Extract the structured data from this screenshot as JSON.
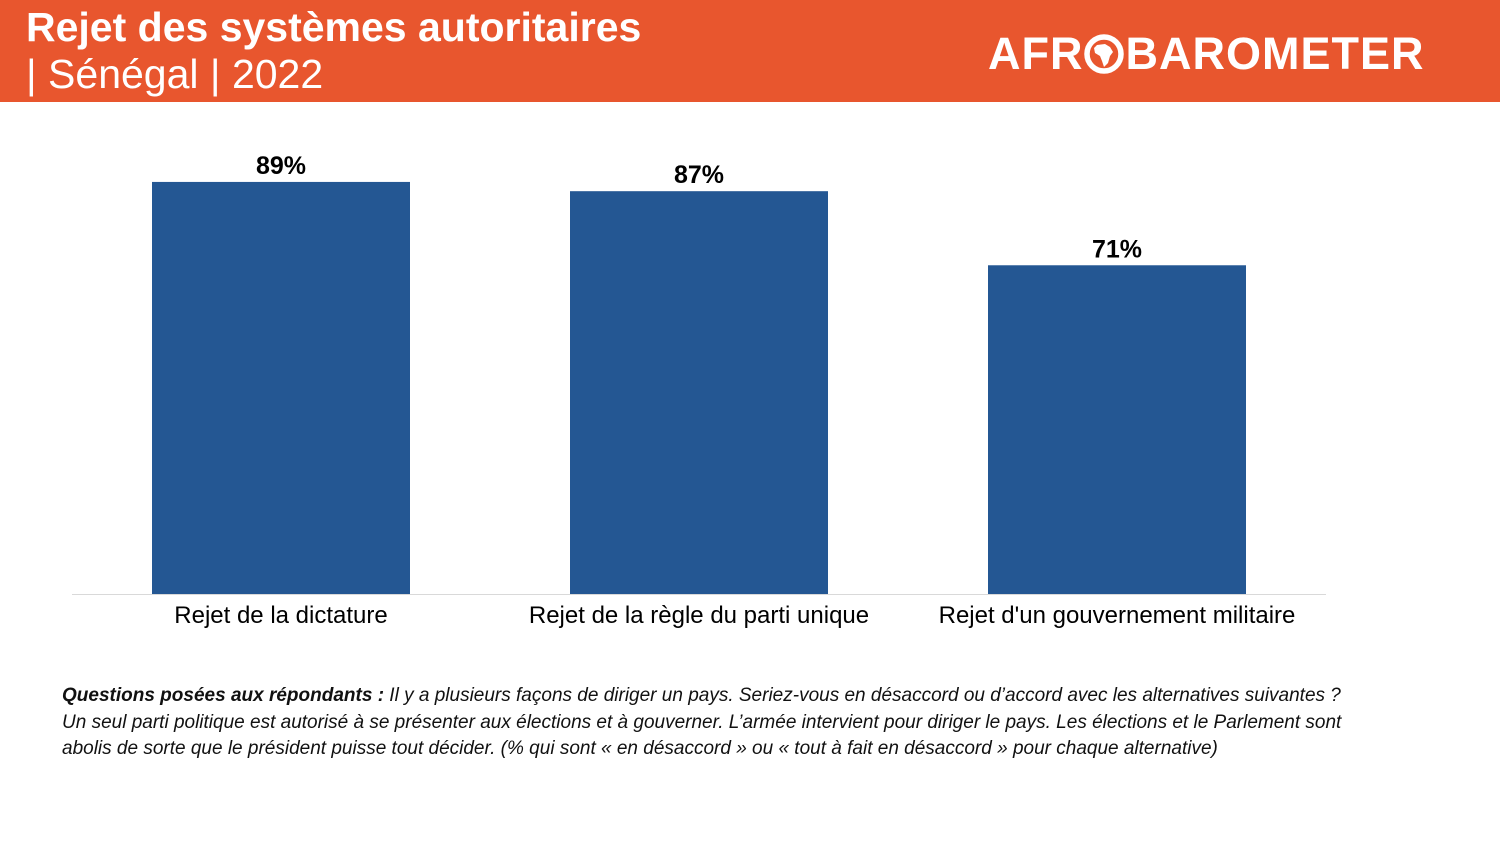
{
  "header": {
    "title": "Rejet des systèmes autoritaires",
    "subtitle": "| Sénégal | 2022",
    "logo_left": "AFR",
    "logo_right": "BAROMETER",
    "logo_text": "AFROBAROMETER",
    "background_color": "#e8562e"
  },
  "chart_data": {
    "type": "bar",
    "categories": [
      "Rejet de la dictature",
      "Rejet de la règle du parti unique",
      "Rejet d'un gouvernement militaire"
    ],
    "values": [
      89,
      87,
      71
    ],
    "value_labels": [
      "89%",
      "87%",
      "71%"
    ],
    "ylim": [
      0,
      100
    ],
    "bar_color": "#245793",
    "grid": false,
    "legend": "none",
    "title": "",
    "xlabel": "",
    "ylabel": ""
  },
  "footnote": {
    "lead": "Questions posées aux répondants :",
    "text": " Il y a plusieurs façons de diriger un pays. Seriez-vous en désaccord ou d’accord avec les alternatives suivantes ? Un seul parti politique est autorisé à se présenter aux élections et à gouverner. L’armée intervient pour diriger le pays. Les élections et le Parlement sont abolis de sorte que le président puisse tout décider. (% qui sont « en désaccord » ou « tout à fait en désaccord » pour chaque alternative)"
  }
}
